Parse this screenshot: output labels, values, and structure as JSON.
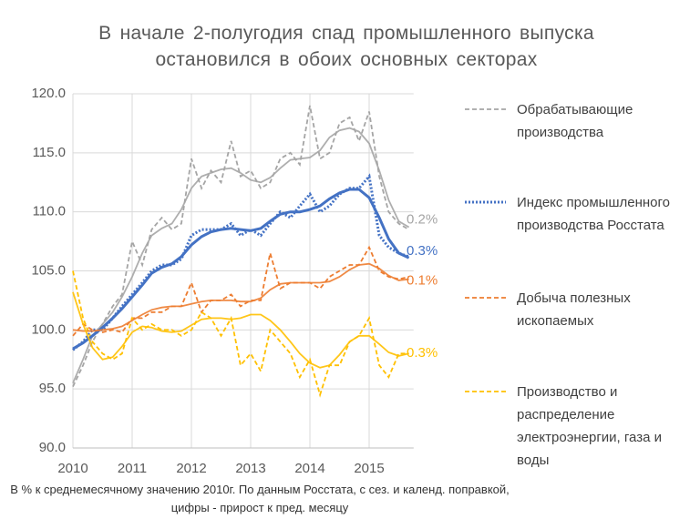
{
  "chart_data": {
    "type": "line",
    "title": "В начале 2-полугодия спад промышленного выпуска остановился в обоих основных секторах",
    "note": "В % к среднемесячному значению 2010г. По данным Росстата, с сез. и календ. поправкой, цифры - прирост к пред. месяцу",
    "x": [
      2010,
      2010.17,
      2010.33,
      2010.5,
      2010.67,
      2010.83,
      2011,
      2011.17,
      2011.33,
      2011.5,
      2011.67,
      2011.83,
      2012,
      2012.17,
      2012.33,
      2012.5,
      2012.67,
      2012.83,
      2013,
      2013.17,
      2013.33,
      2013.5,
      2013.67,
      2013.83,
      2014,
      2014.17,
      2014.33,
      2014.5,
      2014.67,
      2014.83,
      2015,
      2015.17,
      2015.33,
      2015.5,
      2015.67
    ],
    "xlim": [
      2010,
      2015.75
    ],
    "xticks": [
      2010,
      2011,
      2012,
      2013,
      2014,
      2015
    ],
    "ylim": [
      90,
      120
    ],
    "yticks": [
      {
        "value": 90,
        "label": "90.0"
      },
      {
        "value": 95,
        "label": "95.0"
      },
      {
        "value": 100,
        "label": "100.0"
      },
      {
        "value": 105,
        "label": "105.0"
      },
      {
        "value": 110,
        "label": "110.0"
      },
      {
        "value": 115,
        "label": "115.0"
      },
      {
        "value": 120,
        "label": "120.0"
      }
    ],
    "grid": true,
    "series": [
      {
        "name": "Обрабатывающие производства",
        "color": "#a5a5a5",
        "style": "dashed",
        "end_label": "0.2%",
        "values": [
          95.2,
          97,
          99,
          100.5,
          102,
          103,
          107.5,
          105.5,
          108.5,
          109.5,
          108.5,
          109,
          114.5,
          112,
          113.5,
          112.5,
          116,
          113,
          113.5,
          112,
          112.5,
          114.5,
          115,
          114,
          119,
          114.5,
          115,
          117.5,
          118,
          116,
          118.5,
          113,
          110,
          109,
          108.5
        ],
        "trend": [
          95.5,
          97.5,
          99.5,
          100.5,
          101.5,
          102.8,
          104.5,
          106.5,
          108,
          108.6,
          109,
          110.2,
          112,
          113,
          113.3,
          113.6,
          113.7,
          113.3,
          112.7,
          112.5,
          112.9,
          113.7,
          114.4,
          114.5,
          114.6,
          115.2,
          116.3,
          116.9,
          117.1,
          116.8,
          115.8,
          113.5,
          111,
          109.2,
          108.7
        ]
      },
      {
        "name": "Индекс промышленного производства Росстата",
        "color": "#4472c4",
        "style": "dotted",
        "end_label": "0.3%",
        "values": [
          98.3,
          99,
          100,
          100,
          101,
          102,
          103,
          104,
          105,
          105.5,
          105.5,
          106,
          108,
          108.5,
          108.5,
          108.5,
          109,
          108,
          108.5,
          108,
          109,
          110,
          109.5,
          110.5,
          111.5,
          110,
          110.5,
          111.5,
          112,
          112,
          113,
          108,
          107,
          106.5,
          106.2
        ],
        "trend": [
          98.4,
          98.9,
          99.5,
          100.2,
          101,
          101.8,
          102.8,
          103.8,
          104.8,
          105.3,
          105.6,
          106.2,
          107.2,
          107.9,
          108.3,
          108.5,
          108.6,
          108.5,
          108.4,
          108.6,
          109.2,
          109.8,
          110,
          110,
          110.2,
          110.5,
          111.1,
          111.6,
          111.9,
          111.9,
          111.2,
          109.5,
          107.7,
          106.5,
          106.1
        ]
      },
      {
        "name": "Добыча полезных ископаемых",
        "color": "#ed7d31",
        "style": "dashed",
        "end_label": "0.1%",
        "values": [
          99.5,
          100.5,
          100,
          99.8,
          100,
          99.8,
          101,
          101,
          101.5,
          101.5,
          102,
          102,
          104,
          101.5,
          102.5,
          102.5,
          103,
          102,
          102.5,
          102.5,
          106.5,
          103.5,
          104,
          104,
          104,
          103.5,
          104.5,
          105,
          105.5,
          105.5,
          107,
          105,
          104.5,
          104.3,
          104.5
        ],
        "trend": [
          100,
          99.9,
          99.9,
          100,
          100.1,
          100.3,
          100.8,
          101.3,
          101.7,
          101.9,
          102,
          102,
          102.2,
          102.4,
          102.5,
          102.5,
          102.5,
          102.4,
          102.4,
          102.7,
          103.4,
          103.9,
          104,
          104,
          104,
          104,
          104.1,
          104.5,
          105.1,
          105.5,
          105.6,
          105.2,
          104.6,
          104.2,
          104.3
        ]
      },
      {
        "name": "Производство и распределение электроэнергии, газа и воды",
        "color": "#ffc000",
        "style": "dashed",
        "end_label": "0.3%",
        "values": [
          105,
          101,
          99,
          98,
          97.5,
          98,
          101,
          100,
          100.5,
          100,
          100,
          99.5,
          100,
          101.5,
          101,
          99.5,
          101,
          97,
          98,
          96.5,
          100,
          99,
          98,
          96,
          97.5,
          94.5,
          97,
          97,
          99,
          99.5,
          101,
          97,
          96,
          98,
          98
        ],
        "trend": [
          103.2,
          100.5,
          98.5,
          97.5,
          97.7,
          98.6,
          99.8,
          100.3,
          100.2,
          99.9,
          99.8,
          99.9,
          100.4,
          100.9,
          101,
          101,
          100.9,
          101,
          101.3,
          101.3,
          100.8,
          100,
          99,
          98,
          97.2,
          96.8,
          97,
          97.9,
          99,
          99.5,
          99.5,
          98.8,
          98.1,
          97.8,
          98
        ]
      }
    ]
  }
}
